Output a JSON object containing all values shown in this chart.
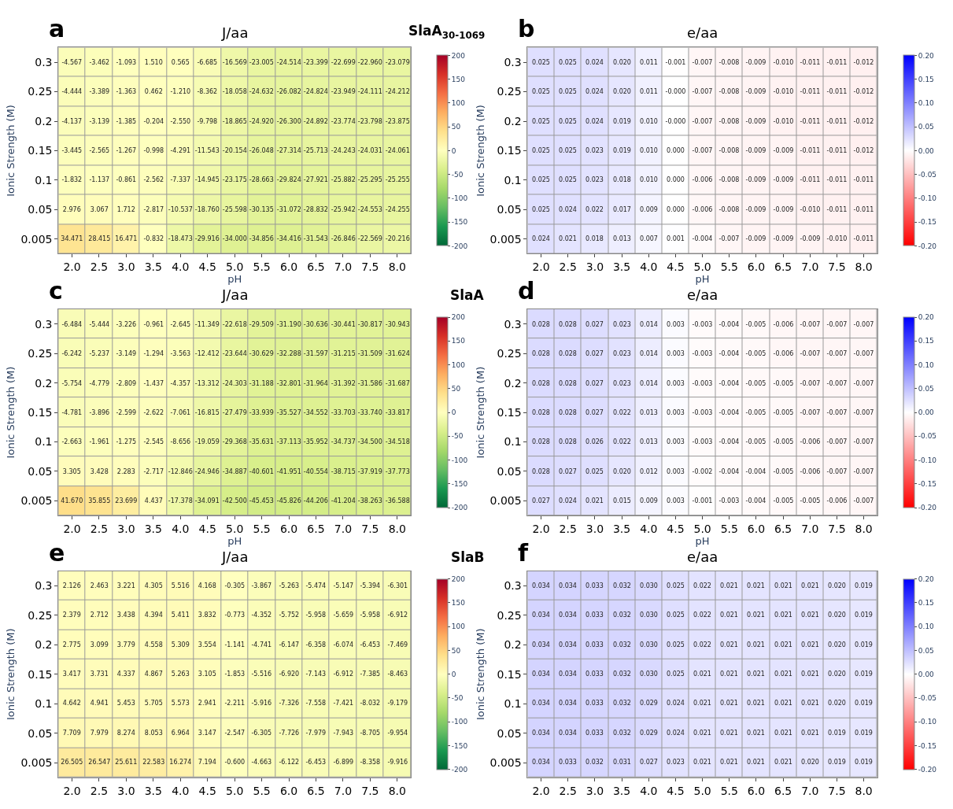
{
  "chart_data": [
    {
      "type": "heatmap",
      "title": "J/aa",
      "xlabel": "pH",
      "ylabel": "Ionic Strength (M)",
      "annotations": [
        "a",
        "SlaA$_{30-1069}$"
      ],
      "data_labels": true,
      "categories": [
        "2.0",
        "2.5",
        "3.0",
        "3.5",
        "4.0",
        "4.5",
        "5.0",
        "5.5",
        "6.0",
        "6.5",
        "7.0",
        "7.5",
        "8.0"
      ],
      "y_categories": [
        "0.3",
        "0.25",
        "0.2",
        "0.15",
        "0.1",
        "0.05",
        "0.005"
      ],
      "colors": [
        "#006837",
        "#1a9850",
        "#66bd63",
        "#a6d96a",
        "#d9ef8b",
        "#ffffbf",
        "#fee08b",
        "#fdae61",
        "#f46d43",
        "#d73027",
        "#a50026"
      ],
      "clim": [
        -200,
        200
      ],
      "cticks": [
        200,
        150,
        100,
        50,
        0,
        -50,
        -100,
        -150,
        -200
      ],
      "cells": [
        [
          -4.567,
          -3.462,
          -1.093,
          1.51,
          0.565,
          -6.685,
          -16.569,
          -23.005,
          -24.514,
          -23.399,
          -22.699,
          -22.96,
          -23.079
        ],
        [
          -4.444,
          -3.389,
          -1.363,
          0.462,
          -1.21,
          -8.362,
          -18.058,
          -24.632,
          -26.082,
          -24.824,
          -23.949,
          -24.111,
          -24.212
        ],
        [
          -4.137,
          -3.139,
          -1.385,
          -0.204,
          -2.55,
          -9.798,
          -18.865,
          -24.92,
          -26.3,
          -24.892,
          -23.774,
          -23.798,
          -23.875
        ],
        [
          -3.445,
          -2.565,
          -1.267,
          -0.998,
          -4.291,
          -11.543,
          -20.154,
          -26.048,
          -27.314,
          -25.713,
          -24.243,
          -24.031,
          -24.061
        ],
        [
          -1.832,
          -1.137,
          -0.861,
          -2.562,
          -7.337,
          -14.945,
          -23.175,
          -28.663,
          -29.824,
          -27.921,
          -25.882,
          -25.295,
          -25.255
        ],
        [
          2.976,
          3.067,
          1.712,
          -2.817,
          -10.537,
          -18.76,
          -25.598,
          -30.135,
          -31.072,
          -28.832,
          -25.942,
          -24.553,
          -24.255
        ],
        [
          34.471,
          28.415,
          16.471,
          -0.832,
          -18.473,
          -29.916,
          -34.0,
          -34.856,
          -34.416,
          -31.543,
          -26.846,
          -22.569,
          -20.216
        ]
      ],
      "cell_labels": [
        [
          "-4.567",
          "-3.462",
          "-1.093",
          "1.510",
          "0.565",
          "-6.685",
          "-16.569",
          "-23.005",
          "-24.514",
          "-23.399",
          "-22.699",
          "-22.960",
          "-23.079"
        ],
        [
          "-4.444",
          "-3.389",
          "-1.363",
          "0.462",
          "-1.210",
          "-8.362",
          "-18.058",
          "-24.632",
          "-26.082",
          "-24.824",
          "-23.949",
          "-24.111",
          "-24.212"
        ],
        [
          "-4.137",
          "-3.139",
          "-1.385",
          "-0.204",
          "-2.550",
          "-9.798",
          "-18.865",
          "-24.920",
          "-26.300",
          "-24.892",
          "-23.774",
          "-23.798",
          "-23.875"
        ],
        [
          "-3.445",
          "-2.565",
          "-1.267",
          "-0.998",
          "-4.291",
          "-11.543",
          "-20.154",
          "-26.048",
          "-27.314",
          "-25.713",
          "-24.243",
          "-24.031",
          "-24.061"
        ],
        [
          "-1.832",
          "-1.137",
          "-0.861",
          "-2.562",
          "-7.337",
          "-14.945",
          "-23.175",
          "-28.663",
          "-29.824",
          "-27.921",
          "-25.882",
          "-25.295",
          "-25.255"
        ],
        [
          "2.976",
          "3.067",
          "1.712",
          "-2.817",
          "-10.537",
          "-18.760",
          "-25.598",
          "-30.135",
          "-31.072",
          "-28.832",
          "-25.942",
          "-24.553",
          "-24.255"
        ],
        [
          "34.471",
          "28.415",
          "16.471",
          "-0.832",
          "-18.473",
          "-29.916",
          "-34.000",
          "-34.856",
          "-34.416",
          "-31.543",
          "-26.846",
          "-22.569",
          "-20.216"
        ]
      ]
    },
    {
      "type": "heatmap",
      "title": "e/aa",
      "xlabel": "pH",
      "ylabel": "Ionic Strength (M)",
      "annotations": [
        "b"
      ],
      "data_labels": true,
      "categories": [
        "2.0",
        "2.5",
        "3.0",
        "3.5",
        "4.0",
        "4.5",
        "5.0",
        "5.5",
        "6.0",
        "6.5",
        "7.0",
        "7.5",
        "8.0"
      ],
      "y_categories": [
        "0.3",
        "0.25",
        "0.2",
        "0.15",
        "0.1",
        "0.05",
        "0.005"
      ],
      "colors": [
        "#ff0000",
        "#ffffff",
        "#0000ff"
      ],
      "clim": [
        -0.2,
        0.2
      ],
      "cticks": [
        {
          "value": 0.2,
          "label": "0.20"
        },
        {
          "value": 0.15,
          "label": "0.15"
        },
        {
          "value": 0.1,
          "label": "0.10"
        },
        {
          "value": 0.05,
          "label": "0.05"
        },
        {
          "value": 0,
          "label": "0.00"
        },
        {
          "value": -0.05,
          "label": "-0.05"
        },
        {
          "value": -0.1,
          "label": "-0.10"
        },
        {
          "value": -0.15,
          "label": "-0.15"
        },
        {
          "value": -0.2,
          "label": "-0.20"
        }
      ],
      "cells": [
        [
          0.025,
          0.025,
          0.024,
          0.02,
          0.011,
          -0.001,
          -0.007,
          -0.008,
          -0.009,
          -0.01,
          -0.011,
          -0.011,
          -0.012
        ],
        [
          0.025,
          0.025,
          0.024,
          0.02,
          0.011,
          -0.0,
          -0.007,
          -0.008,
          -0.009,
          -0.01,
          -0.011,
          -0.011,
          -0.012
        ],
        [
          0.025,
          0.025,
          0.024,
          0.019,
          0.01,
          -0.0,
          -0.007,
          -0.008,
          -0.009,
          -0.01,
          -0.011,
          -0.011,
          -0.012
        ],
        [
          0.025,
          0.025,
          0.023,
          0.019,
          0.01,
          0.0,
          -0.007,
          -0.008,
          -0.009,
          -0.009,
          -0.011,
          -0.011,
          -0.012
        ],
        [
          0.025,
          0.025,
          0.023,
          0.018,
          0.01,
          0.0,
          -0.006,
          -0.008,
          -0.009,
          -0.009,
          -0.011,
          -0.011,
          -0.011
        ],
        [
          0.025,
          0.024,
          0.022,
          0.017,
          0.009,
          0.0,
          -0.006,
          -0.008,
          -0.009,
          -0.009,
          -0.01,
          -0.011,
          -0.011
        ],
        [
          0.024,
          0.021,
          0.018,
          0.013,
          0.007,
          0.001,
          -0.004,
          -0.007,
          -0.009,
          -0.009,
          -0.009,
          -0.01,
          -0.011
        ]
      ],
      "cell_labels": [
        [
          "0.025",
          "0.025",
          "0.024",
          "0.020",
          "0.011",
          "-0.001",
          "-0.007",
          "-0.008",
          "-0.009",
          "-0.010",
          "-0.011",
          "-0.011",
          "-0.012"
        ],
        [
          "0.025",
          "0.025",
          "0.024",
          "0.020",
          "0.011",
          "-0.000",
          "-0.007",
          "-0.008",
          "-0.009",
          "-0.010",
          "-0.011",
          "-0.011",
          "-0.012"
        ],
        [
          "0.025",
          "0.025",
          "0.024",
          "0.019",
          "0.010",
          "-0.000",
          "-0.007",
          "-0.008",
          "-0.009",
          "-0.010",
          "-0.011",
          "-0.011",
          "-0.012"
        ],
        [
          "0.025",
          "0.025",
          "0.023",
          "0.019",
          "0.010",
          "0.000",
          "-0.007",
          "-0.008",
          "-0.009",
          "-0.009",
          "-0.011",
          "-0.011",
          "-0.012"
        ],
        [
          "0.025",
          "0.025",
          "0.023",
          "0.018",
          "0.010",
          "0.000",
          "-0.006",
          "-0.008",
          "-0.009",
          "-0.009",
          "-0.011",
          "-0.011",
          "-0.011"
        ],
        [
          "0.025",
          "0.024",
          "0.022",
          "0.017",
          "0.009",
          "0.000",
          "-0.006",
          "-0.008",
          "-0.009",
          "-0.009",
          "-0.010",
          "-0.011",
          "-0.011"
        ],
        [
          "0.024",
          "0.021",
          "0.018",
          "0.013",
          "0.007",
          "0.001",
          "-0.004",
          "-0.007",
          "-0.009",
          "-0.009",
          "-0.009",
          "-0.010",
          "-0.011"
        ]
      ]
    },
    {
      "type": "heatmap",
      "title": "J/aa",
      "xlabel": "pH",
      "ylabel": "Ionic Strength (M)",
      "annotations": [
        "c",
        "SlaA"
      ],
      "data_labels": true,
      "categories": [
        "2.0",
        "2.5",
        "3.0",
        "3.5",
        "4.0",
        "4.5",
        "5.0",
        "5.5",
        "6.0",
        "6.5",
        "7.0",
        "7.5",
        "8.0"
      ],
      "y_categories": [
        "0.3",
        "0.25",
        "0.2",
        "0.15",
        "0.1",
        "0.05",
        "0.005"
      ],
      "colors": [
        "#006837",
        "#1a9850",
        "#66bd63",
        "#a6d96a",
        "#d9ef8b",
        "#ffffbf",
        "#fee08b",
        "#fdae61",
        "#f46d43",
        "#d73027",
        "#a50026"
      ],
      "clim": [
        -200,
        200
      ],
      "cticks": [
        200,
        150,
        100,
        50,
        0,
        -50,
        -100,
        -150,
        -200
      ],
      "cells": [
        [
          -6.484,
          -5.444,
          -3.226,
          -0.961,
          -2.645,
          -11.349,
          -22.618,
          -29.509,
          -31.19,
          -30.636,
          -30.441,
          -30.817,
          -30.943
        ],
        [
          -6.242,
          -5.237,
          -3.149,
          -1.294,
          -3.563,
          -12.412,
          -23.644,
          -30.629,
          -32.288,
          -31.597,
          -31.215,
          -31.509,
          -31.624
        ],
        [
          -5.754,
          -4.779,
          -2.809,
          -1.437,
          -4.357,
          -13.312,
          -24.303,
          -31.188,
          -32.801,
          -31.964,
          -31.392,
          -31.586,
          -31.687
        ],
        [
          -4.781,
          -3.896,
          -2.599,
          -2.622,
          -7.061,
          -16.815,
          -27.479,
          -33.939,
          -35.527,
          -34.552,
          -33.703,
          -33.74,
          -33.817
        ],
        [
          -2.663,
          -1.961,
          -1.275,
          -2.545,
          -8.656,
          -19.059,
          -29.368,
          -35.631,
          -37.113,
          -35.952,
          -34.737,
          -34.5,
          -34.518
        ],
        [
          3.305,
          3.428,
          2.283,
          -2.717,
          -12.846,
          -24.946,
          -34.887,
          -40.601,
          -41.951,
          -40.554,
          -38.715,
          -37.919,
          -37.773
        ],
        [
          41.67,
          35.855,
          23.699,
          4.437,
          -17.378,
          -34.091,
          -42.5,
          -45.453,
          -45.826,
          -44.206,
          -41.204,
          -38.263,
          -36.588
        ]
      ],
      "cell_labels": [
        [
          "-6.484",
          "-5.444",
          "-3.226",
          "-0.961",
          "-2.645",
          "-11.349",
          "-22.618",
          "-29.509",
          "-31.190",
          "-30.636",
          "-30.441",
          "-30.817",
          "-30.943"
        ],
        [
          "-6.242",
          "-5.237",
          "-3.149",
          "-1.294",
          "-3.563",
          "-12.412",
          "-23.644",
          "-30.629",
          "-32.288",
          "-31.597",
          "-31.215",
          "-31.509",
          "-31.624"
        ],
        [
          "-5.754",
          "-4.779",
          "-2.809",
          "-1.437",
          "-4.357",
          "-13.312",
          "-24.303",
          "-31.188",
          "-32.801",
          "-31.964",
          "-31.392",
          "-31.586",
          "-31.687"
        ],
        [
          "-4.781",
          "-3.896",
          "-2.599",
          "-2.622",
          "-7.061",
          "-16.815",
          "-27.479",
          "-33.939",
          "-35.527",
          "-34.552",
          "-33.703",
          "-33.740",
          "-33.817"
        ],
        [
          "-2.663",
          "-1.961",
          "-1.275",
          "-2.545",
          "-8.656",
          "-19.059",
          "-29.368",
          "-35.631",
          "-37.113",
          "-35.952",
          "-34.737",
          "-34.500",
          "-34.518"
        ],
        [
          "3.305",
          "3.428",
          "2.283",
          "-2.717",
          "-12.846",
          "-24.946",
          "-34.887",
          "-40.601",
          "-41.951",
          "-40.554",
          "-38.715",
          "-37.919",
          "-37.773"
        ],
        [
          "41.670",
          "35.855",
          "23.699",
          "4.437",
          "-17.378",
          "-34.091",
          "-42.500",
          "-45.453",
          "-45.826",
          "-44.206",
          "-41.204",
          "-38.263",
          "-36.588"
        ]
      ]
    },
    {
      "type": "heatmap",
      "title": "e/aa",
      "xlabel": "pH",
      "ylabel": "Ionic Strength (M)",
      "annotations": [
        "d"
      ],
      "data_labels": true,
      "categories": [
        "2.0",
        "2.5",
        "3.0",
        "3.5",
        "4.0",
        "4.5",
        "5.0",
        "5.5",
        "6.0",
        "6.5",
        "7.0",
        "7.5",
        "8.0"
      ],
      "y_categories": [
        "0.3",
        "0.25",
        "0.2",
        "0.15",
        "0.1",
        "0.05",
        "0.005"
      ],
      "colors": [
        "#ff0000",
        "#ffffff",
        "#0000ff"
      ],
      "clim": [
        -0.2,
        0.2
      ],
      "cticks": [
        {
          "value": 0.2,
          "label": "0.20"
        },
        {
          "value": 0.15,
          "label": "0.15"
        },
        {
          "value": 0.1,
          "label": "0.10"
        },
        {
          "value": 0.05,
          "label": "0.05"
        },
        {
          "value": 0,
          "label": "0.00"
        },
        {
          "value": -0.05,
          "label": "-0.05"
        },
        {
          "value": -0.1,
          "label": "-0.10"
        },
        {
          "value": -0.15,
          "label": "-0.15"
        },
        {
          "value": -0.2,
          "label": "-0.20"
        }
      ],
      "cells": [
        [
          0.028,
          0.028,
          0.027,
          0.023,
          0.014,
          0.003,
          -0.003,
          -0.004,
          -0.005,
          -0.006,
          -0.007,
          -0.007,
          -0.007
        ],
        [
          0.028,
          0.028,
          0.027,
          0.023,
          0.014,
          0.003,
          -0.003,
          -0.004,
          -0.005,
          -0.006,
          -0.007,
          -0.007,
          -0.007
        ],
        [
          0.028,
          0.028,
          0.027,
          0.023,
          0.014,
          0.003,
          -0.003,
          -0.004,
          -0.005,
          -0.005,
          -0.007,
          -0.007,
          -0.007
        ],
        [
          0.028,
          0.028,
          0.027,
          0.022,
          0.013,
          0.003,
          -0.003,
          -0.004,
          -0.005,
          -0.005,
          -0.007,
          -0.007,
          -0.007
        ],
        [
          0.028,
          0.028,
          0.026,
          0.022,
          0.013,
          0.003,
          -0.003,
          -0.004,
          -0.005,
          -0.005,
          -0.006,
          -0.007,
          -0.007
        ],
        [
          0.028,
          0.027,
          0.025,
          0.02,
          0.012,
          0.003,
          -0.002,
          -0.004,
          -0.004,
          -0.005,
          -0.006,
          -0.007,
          -0.007
        ],
        [
          0.027,
          0.024,
          0.021,
          0.015,
          0.009,
          0.003,
          -0.001,
          -0.003,
          -0.004,
          -0.005,
          -0.005,
          -0.006,
          -0.007
        ]
      ],
      "cell_labels": [
        [
          "0.028",
          "0.028",
          "0.027",
          "0.023",
          "0.014",
          "0.003",
          "-0.003",
          "-0.004",
          "-0.005",
          "-0.006",
          "-0.007",
          "-0.007",
          "-0.007"
        ],
        [
          "0.028",
          "0.028",
          "0.027",
          "0.023",
          "0.014",
          "0.003",
          "-0.003",
          "-0.004",
          "-0.005",
          "-0.006",
          "-0.007",
          "-0.007",
          "-0.007"
        ],
        [
          "0.028",
          "0.028",
          "0.027",
          "0.023",
          "0.014",
          "0.003",
          "-0.003",
          "-0.004",
          "-0.005",
          "-0.005",
          "-0.007",
          "-0.007",
          "-0.007"
        ],
        [
          "0.028",
          "0.028",
          "0.027",
          "0.022",
          "0.013",
          "0.003",
          "-0.003",
          "-0.004",
          "-0.005",
          "-0.005",
          "-0.007",
          "-0.007",
          "-0.007"
        ],
        [
          "0.028",
          "0.028",
          "0.026",
          "0.022",
          "0.013",
          "0.003",
          "-0.003",
          "-0.004",
          "-0.005",
          "-0.005",
          "-0.006",
          "-0.007",
          "-0.007"
        ],
        [
          "0.028",
          "0.027",
          "0.025",
          "0.020",
          "0.012",
          "0.003",
          "-0.002",
          "-0.004",
          "-0.004",
          "-0.005",
          "-0.006",
          "-0.007",
          "-0.007"
        ],
        [
          "0.027",
          "0.024",
          "0.021",
          "0.015",
          "0.009",
          "0.003",
          "-0.001",
          "-0.003",
          "-0.004",
          "-0.005",
          "-0.005",
          "-0.006",
          "-0.007"
        ]
      ]
    },
    {
      "type": "heatmap",
      "title": "J/aa",
      "ylabel": "Ionic Strength (M)",
      "annotations": [
        "e",
        "SlaB"
      ],
      "data_labels": true,
      "categories": [
        "2.0",
        "2.5",
        "3.0",
        "3.5",
        "4.0",
        "4.5",
        "5.0",
        "5.5",
        "6.0",
        "6.5",
        "7.0",
        "7.5",
        "8.0"
      ],
      "y_categories": [
        "0.3",
        "0.25",
        "0.2",
        "0.15",
        "0.1",
        "0.05",
        "0.005"
      ],
      "colors": [
        "#006837",
        "#1a9850",
        "#66bd63",
        "#a6d96a",
        "#d9ef8b",
        "#ffffbf",
        "#fee08b",
        "#fdae61",
        "#f46d43",
        "#d73027",
        "#a50026"
      ],
      "clim": [
        -200,
        200
      ],
      "cticks": [
        200,
        150,
        100,
        50,
        0,
        -50,
        -100,
        -150,
        -200
      ],
      "cells": [
        [
          2.126,
          2.463,
          3.221,
          4.305,
          5.516,
          4.168,
          -0.305,
          -3.867,
          -5.263,
          -5.474,
          -5.147,
          -5.394,
          -6.301
        ],
        [
          2.379,
          2.712,
          3.438,
          4.394,
          5.411,
          3.832,
          -0.773,
          -4.352,
          -5.752,
          -5.958,
          -5.659,
          -5.958,
          -6.912
        ],
        [
          2.775,
          3.099,
          3.779,
          4.558,
          5.309,
          3.554,
          -1.141,
          -4.741,
          -6.147,
          -6.358,
          -6.074,
          -6.453,
          -7.469
        ],
        [
          3.417,
          3.731,
          4.337,
          4.867,
          5.263,
          3.105,
          -1.853,
          -5.516,
          -6.92,
          -7.143,
          -6.912,
          -7.385,
          -8.463
        ],
        [
          4.642,
          4.941,
          5.453,
          5.705,
          5.573,
          2.941,
          -2.211,
          -5.916,
          -7.326,
          -7.558,
          -7.421,
          -8.032,
          -9.179
        ],
        [
          7.709,
          7.979,
          8.274,
          8.053,
          6.964,
          3.147,
          -2.547,
          -6.305,
          -7.726,
          -7.979,
          -7.943,
          -8.705,
          -9.954
        ],
        [
          26.505,
          26.547,
          25.611,
          22.583,
          16.274,
          7.194,
          -0.6,
          -4.663,
          -6.122,
          -6.453,
          -6.899,
          -8.358,
          -9.916
        ]
      ],
      "cell_labels": [
        [
          "2.126",
          "2.463",
          "3.221",
          "4.305",
          "5.516",
          "4.168",
          "-0.305",
          "-3.867",
          "-5.263",
          "-5.474",
          "-5.147",
          "-5.394",
          "-6.301"
        ],
        [
          "2.379",
          "2.712",
          "3.438",
          "4.394",
          "5.411",
          "3.832",
          "-0.773",
          "-4.352",
          "-5.752",
          "-5.958",
          "-5.659",
          "-5.958",
          "-6.912"
        ],
        [
          "2.775",
          "3.099",
          "3.779",
          "4.558",
          "5.309",
          "3.554",
          "-1.141",
          "-4.741",
          "-6.147",
          "-6.358",
          "-6.074",
          "-6.453",
          "-7.469"
        ],
        [
          "3.417",
          "3.731",
          "4.337",
          "4.867",
          "5.263",
          "3.105",
          "-1.853",
          "-5.516",
          "-6.920",
          "-7.143",
          "-6.912",
          "-7.385",
          "-8.463"
        ],
        [
          "4.642",
          "4.941",
          "5.453",
          "5.705",
          "5.573",
          "2.941",
          "-2.211",
          "-5.916",
          "-7.326",
          "-7.558",
          "-7.421",
          "-8.032",
          "-9.179"
        ],
        [
          "7.709",
          "7.979",
          "8.274",
          "8.053",
          "6.964",
          "3.147",
          "-2.547",
          "-6.305",
          "-7.726",
          "-7.979",
          "-7.943",
          "-8.705",
          "-9.954"
        ],
        [
          "26.505",
          "26.547",
          "25.611",
          "22.583",
          "16.274",
          "7.194",
          "-0.600",
          "-4.663",
          "-6.122",
          "-6.453",
          "-6.899",
          "-8.358",
          "-9.916"
        ]
      ]
    },
    {
      "type": "heatmap",
      "title": "e/aa",
      "ylabel": "Ionic Strength (M)",
      "annotations": [
        "f"
      ],
      "data_labels": true,
      "categories": [
        "2.0",
        "2.5",
        "3.0",
        "3.5",
        "4.0",
        "4.5",
        "5.0",
        "5.5",
        "6.0",
        "6.5",
        "7.0",
        "7.5",
        "8.0"
      ],
      "y_categories": [
        "0.3",
        "0.25",
        "0.2",
        "0.15",
        "0.1",
        "0.05",
        "0.005"
      ],
      "colors": [
        "#ff0000",
        "#ffffff",
        "#0000ff"
      ],
      "clim": [
        -0.2,
        0.2
      ],
      "cticks": [
        {
          "value": 0.2,
          "label": "0.20"
        },
        {
          "value": 0.15,
          "label": "0.15"
        },
        {
          "value": 0.1,
          "label": "0.10"
        },
        {
          "value": 0.05,
          "label": "0.05"
        },
        {
          "value": 0,
          "label": "0.00"
        },
        {
          "value": -0.05,
          "label": "-0.05"
        },
        {
          "value": -0.1,
          "label": "-0.10"
        },
        {
          "value": -0.15,
          "label": "-0.15"
        },
        {
          "value": -0.2,
          "label": "-0.20"
        }
      ],
      "cells": [
        [
          0.034,
          0.034,
          0.033,
          0.032,
          0.03,
          0.025,
          0.022,
          0.021,
          0.021,
          0.021,
          0.021,
          0.02,
          0.019
        ],
        [
          0.034,
          0.034,
          0.033,
          0.032,
          0.03,
          0.025,
          0.022,
          0.021,
          0.021,
          0.021,
          0.021,
          0.02,
          0.019
        ],
        [
          0.034,
          0.034,
          0.033,
          0.032,
          0.03,
          0.025,
          0.022,
          0.021,
          0.021,
          0.021,
          0.021,
          0.02,
          0.019
        ],
        [
          0.034,
          0.034,
          0.033,
          0.032,
          0.03,
          0.025,
          0.021,
          0.021,
          0.021,
          0.021,
          0.021,
          0.02,
          0.019
        ],
        [
          0.034,
          0.034,
          0.033,
          0.032,
          0.029,
          0.024,
          0.021,
          0.021,
          0.021,
          0.021,
          0.021,
          0.02,
          0.019
        ],
        [
          0.034,
          0.034,
          0.033,
          0.032,
          0.029,
          0.024,
          0.021,
          0.021,
          0.021,
          0.021,
          0.021,
          0.019,
          0.019
        ],
        [
          0.034,
          0.033,
          0.032,
          0.031,
          0.027,
          0.023,
          0.021,
          0.021,
          0.021,
          0.021,
          0.02,
          0.019,
          0.019
        ]
      ],
      "cell_labels": [
        [
          "0.034",
          "0.034",
          "0.033",
          "0.032",
          "0.030",
          "0.025",
          "0.022",
          "0.021",
          "0.021",
          "0.021",
          "0.021",
          "0.020",
          "0.019"
        ],
        [
          "0.034",
          "0.034",
          "0.033",
          "0.032",
          "0.030",
          "0.025",
          "0.022",
          "0.021",
          "0.021",
          "0.021",
          "0.021",
          "0.020",
          "0.019"
        ],
        [
          "0.034",
          "0.034",
          "0.033",
          "0.032",
          "0.030",
          "0.025",
          "0.022",
          "0.021",
          "0.021",
          "0.021",
          "0.021",
          "0.020",
          "0.019"
        ],
        [
          "0.034",
          "0.034",
          "0.033",
          "0.032",
          "0.030",
          "0.025",
          "0.021",
          "0.021",
          "0.021",
          "0.021",
          "0.021",
          "0.020",
          "0.019"
        ],
        [
          "0.034",
          "0.034",
          "0.033",
          "0.032",
          "0.029",
          "0.024",
          "0.021",
          "0.021",
          "0.021",
          "0.021",
          "0.021",
          "0.020",
          "0.019"
        ],
        [
          "0.034",
          "0.034",
          "0.033",
          "0.032",
          "0.029",
          "0.024",
          "0.021",
          "0.021",
          "0.021",
          "0.021",
          "0.021",
          "0.019",
          "0.019"
        ],
        [
          "0.034",
          "0.033",
          "0.032",
          "0.031",
          "0.027",
          "0.023",
          "0.021",
          "0.021",
          "0.021",
          "0.021",
          "0.020",
          "0.019",
          "0.019"
        ]
      ]
    }
  ]
}
